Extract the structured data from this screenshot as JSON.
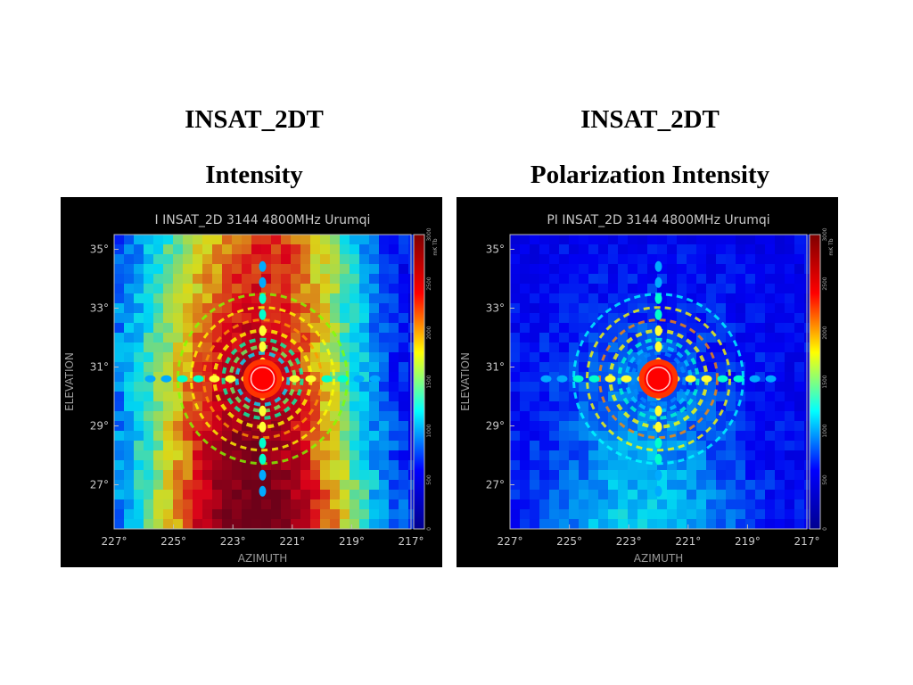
{
  "panels": [
    {
      "heading_1": "INSAT_2DT",
      "heading_2": "Intensity",
      "plot_title": "I INSAT_2D 3144 4800MHz Urumqi",
      "mode": "intensity"
    },
    {
      "heading_1": "INSAT_2DT",
      "heading_2": "Polarization Intensity",
      "plot_title": "PI INSAT_2D 3144 4800MHz Urumqi",
      "mode": "polarization"
    }
  ],
  "chart_data": [
    {
      "type": "heatmap",
      "title": "I INSAT_2D 3144 4800MHz Urumqi",
      "xlabel": "AZIMUTH",
      "ylabel": "ELEVATION",
      "x_ticks": [
        "227°",
        "225°",
        "223°",
        "221°",
        "219°",
        "217°"
      ],
      "x_tick_values": [
        227,
        225,
        223,
        221,
        219,
        217
      ],
      "y_ticks": [
        "35°",
        "33°",
        "31°",
        "29°",
        "27°"
      ],
      "y_tick_values": [
        35,
        33,
        31,
        29,
        27
      ],
      "xlim": [
        227,
        217
      ],
      "ylim": [
        25.5,
        35.5
      ],
      "colorbar_ticks": [
        "0",
        "500",
        "1000",
        "1500",
        "2000",
        "2500",
        "3000"
      ],
      "colorbar_tick_values": [
        0,
        500,
        1000,
        1500,
        2000,
        2500,
        3000
      ],
      "colorbar_unit": "mK Tb",
      "source_center": [
        222,
        30.6
      ],
      "colors": [
        "#00008f",
        "#0000ff",
        "#00ffff",
        "#ffff00",
        "#ff0000",
        "#800000"
      ]
    },
    {
      "type": "heatmap",
      "title": "PI INSAT_2D 3144 4800MHz Urumqi",
      "xlabel": "AZIMUTH",
      "ylabel": "ELEVATION",
      "x_ticks": [
        "227°",
        "225°",
        "223°",
        "221°",
        "219°",
        "217°"
      ],
      "x_tick_values": [
        227,
        225,
        223,
        221,
        219,
        217
      ],
      "y_ticks": [
        "35°",
        "33°",
        "31°",
        "29°",
        "27°"
      ],
      "y_tick_values": [
        35,
        33,
        31,
        29,
        27
      ],
      "xlim": [
        227,
        217
      ],
      "ylim": [
        25.5,
        35.5
      ],
      "colorbar_ticks": [
        "0",
        "500",
        "1000",
        "1500",
        "2000",
        "2500",
        "3000"
      ],
      "colorbar_tick_values": [
        0,
        500,
        1000,
        1500,
        2000,
        2500,
        3000
      ],
      "colorbar_unit": "mK Tb",
      "source_center": [
        222,
        30.6
      ],
      "colors": [
        "#00008f",
        "#0000ff",
        "#00ffff",
        "#ffff00",
        "#ff0000",
        "#800000"
      ]
    }
  ]
}
